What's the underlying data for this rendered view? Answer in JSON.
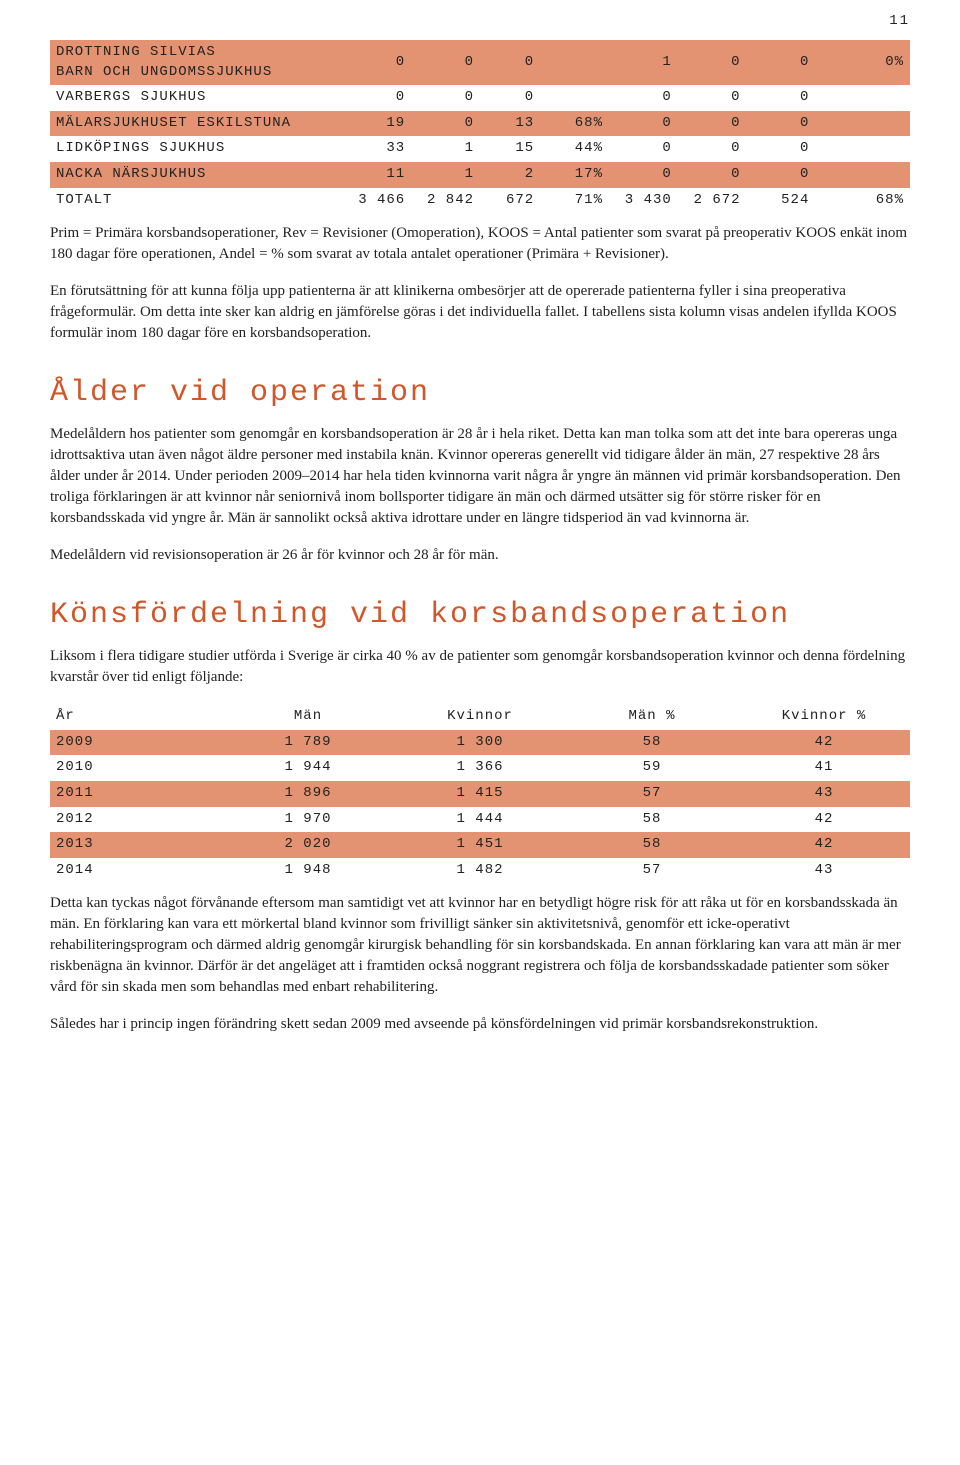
{
  "pageNumber": "11",
  "table1": {
    "rows": [
      {
        "name": "DROTTNING SILVIAS\nBARN OCH UNGDOMSSJUKHUS",
        "c1": "0",
        "c2": "0",
        "c3": "0",
        "c4": "",
        "c5": "1",
        "c6": "0",
        "c7": "0",
        "c8": "0%",
        "stripe": true,
        "multiline": true
      },
      {
        "name": "VARBERGS SJUKHUS",
        "c1": "0",
        "c2": "0",
        "c3": "0",
        "c4": "",
        "c5": "0",
        "c6": "0",
        "c7": "0",
        "c8": "",
        "stripe": false
      },
      {
        "name": "MÄLARSJUKHUSET ESKILSTUNA",
        "c1": "19",
        "c2": "0",
        "c3": "13",
        "c4": "68%",
        "c5": "0",
        "c6": "0",
        "c7": "0",
        "c8": "",
        "stripe": true
      },
      {
        "name": "LIDKÖPINGS SJUKHUS",
        "c1": "33",
        "c2": "1",
        "c3": "15",
        "c4": "44%",
        "c5": "0",
        "c6": "0",
        "c7": "0",
        "c8": "",
        "stripe": false
      },
      {
        "name": "NACKA NÄRSJUKHUS",
        "c1": "11",
        "c2": "1",
        "c3": "2",
        "c4": "17%",
        "c5": "0",
        "c6": "0",
        "c7": "0",
        "c8": "",
        "stripe": true
      },
      {
        "name": "TOTALT",
        "c1": "3 466",
        "c2": "2 842",
        "c3": "672",
        "c4": "71%",
        "c5": "3 430",
        "c6": "2 672",
        "c7": "524",
        "c8": "68%",
        "stripe": false
      }
    ]
  },
  "para1": "Prim = Primära korsbandsoperationer, Rev = Revisioner (Omoperation), KOOS = Antal patienter som svarat på preoperativ KOOS enkät inom 180 dagar före operationen, Andel = % som svarat av totala antalet operationer (Primära + Revisioner).",
  "para2": "En förutsättning för att kunna följa upp patienterna är att klinikerna ombesörjer att de opererade patienterna fyller i sina preoperativa frågeformulär. Om detta inte sker kan aldrig en jämförelse göras i det individuella fallet. I tabellens sista kolumn visas andelen ifyllda KOOS formulär inom 180 dagar före en korsbandsoperation.",
  "heading1": "Ålder vid operation",
  "para3": "Medelåldern hos patienter som genomgår en korsbandsoperation är 28 år i hela riket. Detta kan man tolka som att det inte bara opereras unga idrottsaktiva utan även något äldre personer med instabila knän. Kvinnor opereras generellt vid tidigare ålder än män, 27 respektive 28 års ålder under år 2014. Under perioden 2009–2014 har hela tiden kvinnorna varit några år yngre än männen vid primär korsbandsoperation. Den troliga förklaringen är att kvinnor når seniornivå inom bollsporter tidigare än män och därmed utsätter sig för större risker för en korsbandsskada vid yngre år. Män är sannolikt också aktiva idrottare under en längre tidsperiod än vad kvinnorna är.",
  "para4": "Medelåldern vid revisionsoperation är 26 år för kvinnor och 28 år för män.",
  "heading2": "Könsfördelning vid korsbandsoperation",
  "para5": "Liksom i flera tidigare studier utförda i Sverige är cirka 40 % av de patienter som genomgår korsbandsoperation kvinnor och denna fördelning kvarstår över tid enligt följande:",
  "table2": {
    "headers": [
      "År",
      "Män",
      "Kvinnor",
      "Män %",
      "Kvinnor %"
    ],
    "rows": [
      {
        "c": [
          "2009",
          "1 789",
          "1 300",
          "58",
          "42"
        ],
        "stripe": true
      },
      {
        "c": [
          "2010",
          "1 944",
          "1 366",
          "59",
          "41"
        ],
        "stripe": false
      },
      {
        "c": [
          "2011",
          "1 896",
          "1 415",
          "57",
          "43"
        ],
        "stripe": true
      },
      {
        "c": [
          "2012",
          "1 970",
          "1 444",
          "58",
          "42"
        ],
        "stripe": false
      },
      {
        "c": [
          "2013",
          "2 020",
          "1 451",
          "58",
          "42"
        ],
        "stripe": true
      },
      {
        "c": [
          "2014",
          "1 948",
          "1 482",
          "57",
          "43"
        ],
        "stripe": false
      }
    ]
  },
  "para6": "Detta kan tyckas något förvånande eftersom man samtidigt vet att kvinnor har en betydligt högre risk för att råka ut för en korsbandsskada än män. En förklaring kan vara ett mörkertal bland kvinnor som frivilligt sänker sin aktivitetsnivå, genomför ett icke-operativt rehabiliteringsprogram och därmed aldrig genomgår kirurgisk behandling för sin korsbandskada. En annan förklaring kan vara att män är mer riskbenägna än kvinnor. Därför är det angeläget att i framtiden också noggrant registrera och följa de korsbandsskadade patienter som söker vård för sin skada men som behandlas med enbart rehabilitering.",
  "para7": "Således har i princip ingen förändring skett sedan 2009 med avseende på könsfördelningen vid primär korsbandsrekonstruktion.",
  "style": {
    "stripeColor": "#e49372",
    "headingColor": "#d1572a",
    "bodyFont": "Georgia",
    "monoFont": "Courier New",
    "bodyFontSize": 15,
    "headingFontSize": 30
  }
}
